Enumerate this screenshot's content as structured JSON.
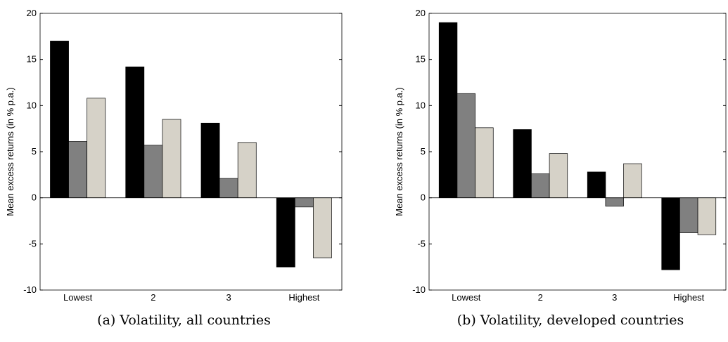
{
  "chart_data": [
    {
      "type": "bar",
      "caption": "(a) Volatility, all countries",
      "y_label": "Mean excess returns (in % p.a.)",
      "categories": [
        "Lowest",
        "2",
        "3",
        "Highest"
      ],
      "series": [
        {
          "color": "#000000",
          "values": [
            17.0,
            14.2,
            8.1,
            -7.5
          ]
        },
        {
          "color": "#808080",
          "values": [
            6.1,
            5.7,
            2.1,
            -1.0
          ]
        },
        {
          "color": "#d6d2c8",
          "values": [
            10.8,
            8.5,
            6.0,
            -6.5
          ]
        }
      ],
      "ylim": [
        -10,
        20
      ],
      "yticks": [
        -10,
        -5,
        0,
        5,
        10,
        15,
        20
      ]
    },
    {
      "type": "bar",
      "caption": "(b) Volatility, developed countries",
      "y_label": "Mean excess returns (in % p.a.)",
      "categories": [
        "Lowest",
        "2",
        "3",
        "Highest"
      ],
      "series": [
        {
          "color": "#000000",
          "values": [
            19.0,
            7.4,
            2.8,
            -7.8
          ]
        },
        {
          "color": "#808080",
          "values": [
            11.3,
            2.6,
            -0.9,
            -3.8
          ]
        },
        {
          "color": "#d6d2c8",
          "values": [
            7.6,
            4.8,
            3.7,
            -4.0
          ]
        }
      ],
      "ylim": [
        -10,
        20
      ],
      "yticks": [
        -10,
        -5,
        0,
        5,
        10,
        15,
        20
      ]
    }
  ]
}
